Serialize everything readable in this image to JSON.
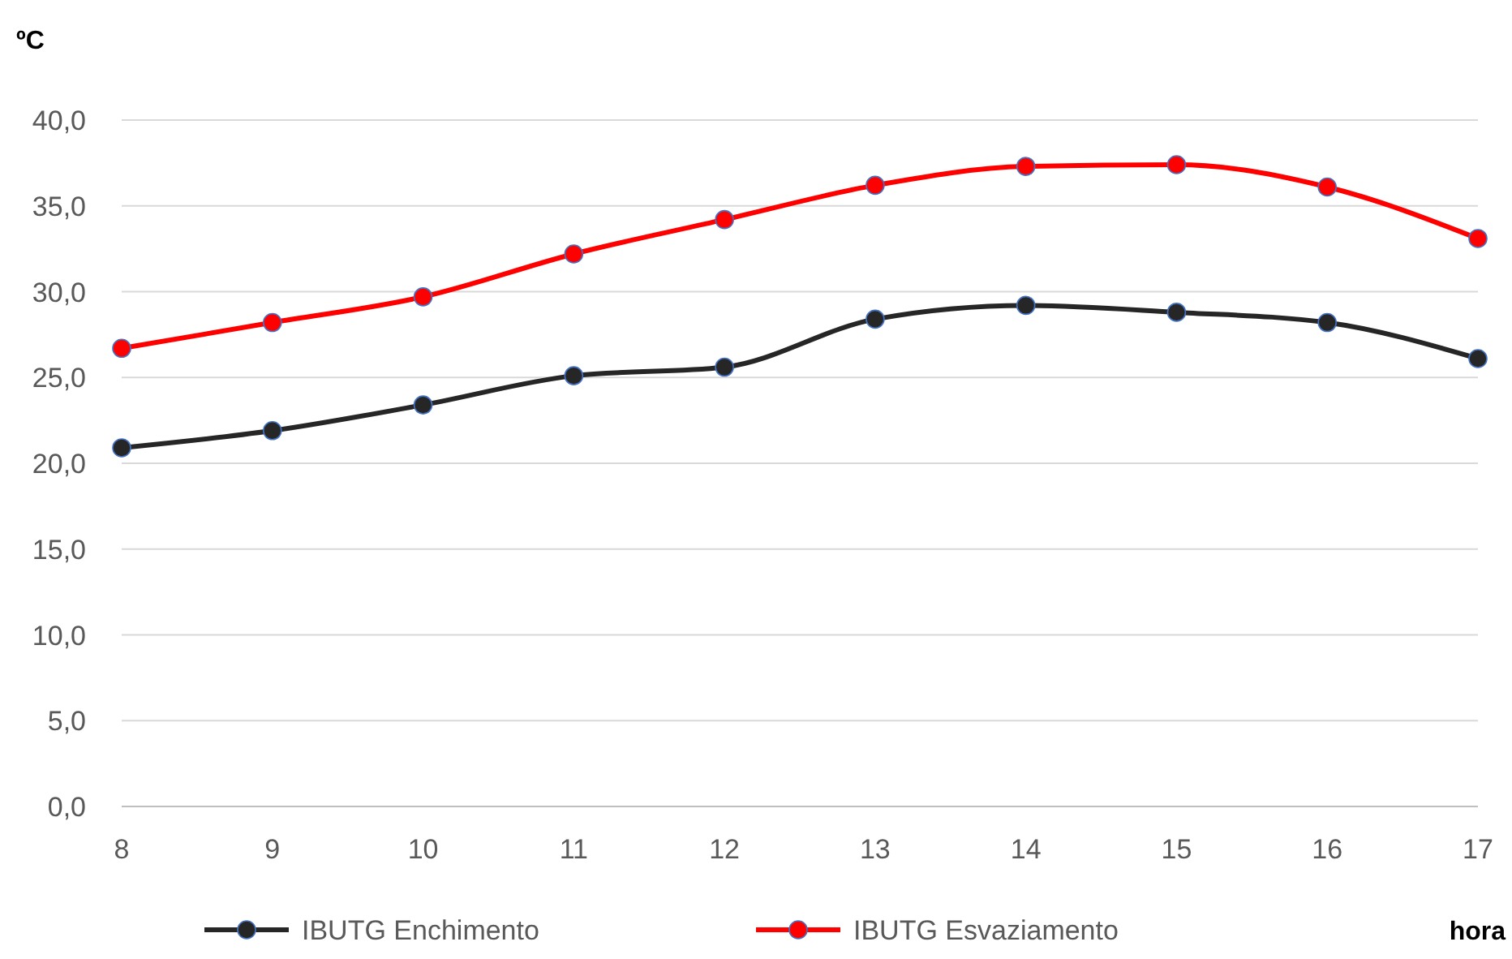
{
  "chart_data": {
    "type": "line",
    "ylabel": "ºC",
    "xlabel": "hora",
    "x": [
      8,
      9,
      10,
      11,
      12,
      13,
      14,
      15,
      16,
      17
    ],
    "series": [
      {
        "name": "IBUTG Enchimento",
        "color": "#262626",
        "values": [
          20.9,
          21.9,
          23.4,
          25.1,
          25.6,
          28.4,
          29.2,
          28.8,
          28.2,
          26.1
        ]
      },
      {
        "name": "IBUTG Esvaziamento",
        "color": "#ff0000",
        "values": [
          26.7,
          28.2,
          29.7,
          32.2,
          34.2,
          36.2,
          37.3,
          37.4,
          36.1,
          33.1
        ]
      }
    ],
    "xlim": [
      8,
      17
    ],
    "xticks": [
      8,
      9,
      10,
      11,
      12,
      13,
      14,
      15,
      16,
      17
    ],
    "ylim": [
      0,
      40
    ],
    "yticks": [
      {
        "value": 0,
        "label": "0,0"
      },
      {
        "value": 5,
        "label": "5,0"
      },
      {
        "value": 10,
        "label": "10,0"
      },
      {
        "value": 15,
        "label": "15,0"
      },
      {
        "value": 20,
        "label": "20,0"
      },
      {
        "value": 25,
        "label": "25,0"
      },
      {
        "value": 30,
        "label": "30,0"
      },
      {
        "value": 35,
        "label": "35,0"
      },
      {
        "value": 40,
        "label": "40,0"
      }
    ],
    "grid": "y",
    "legend": "bottom",
    "marker": "circle",
    "line_style": "solid"
  }
}
